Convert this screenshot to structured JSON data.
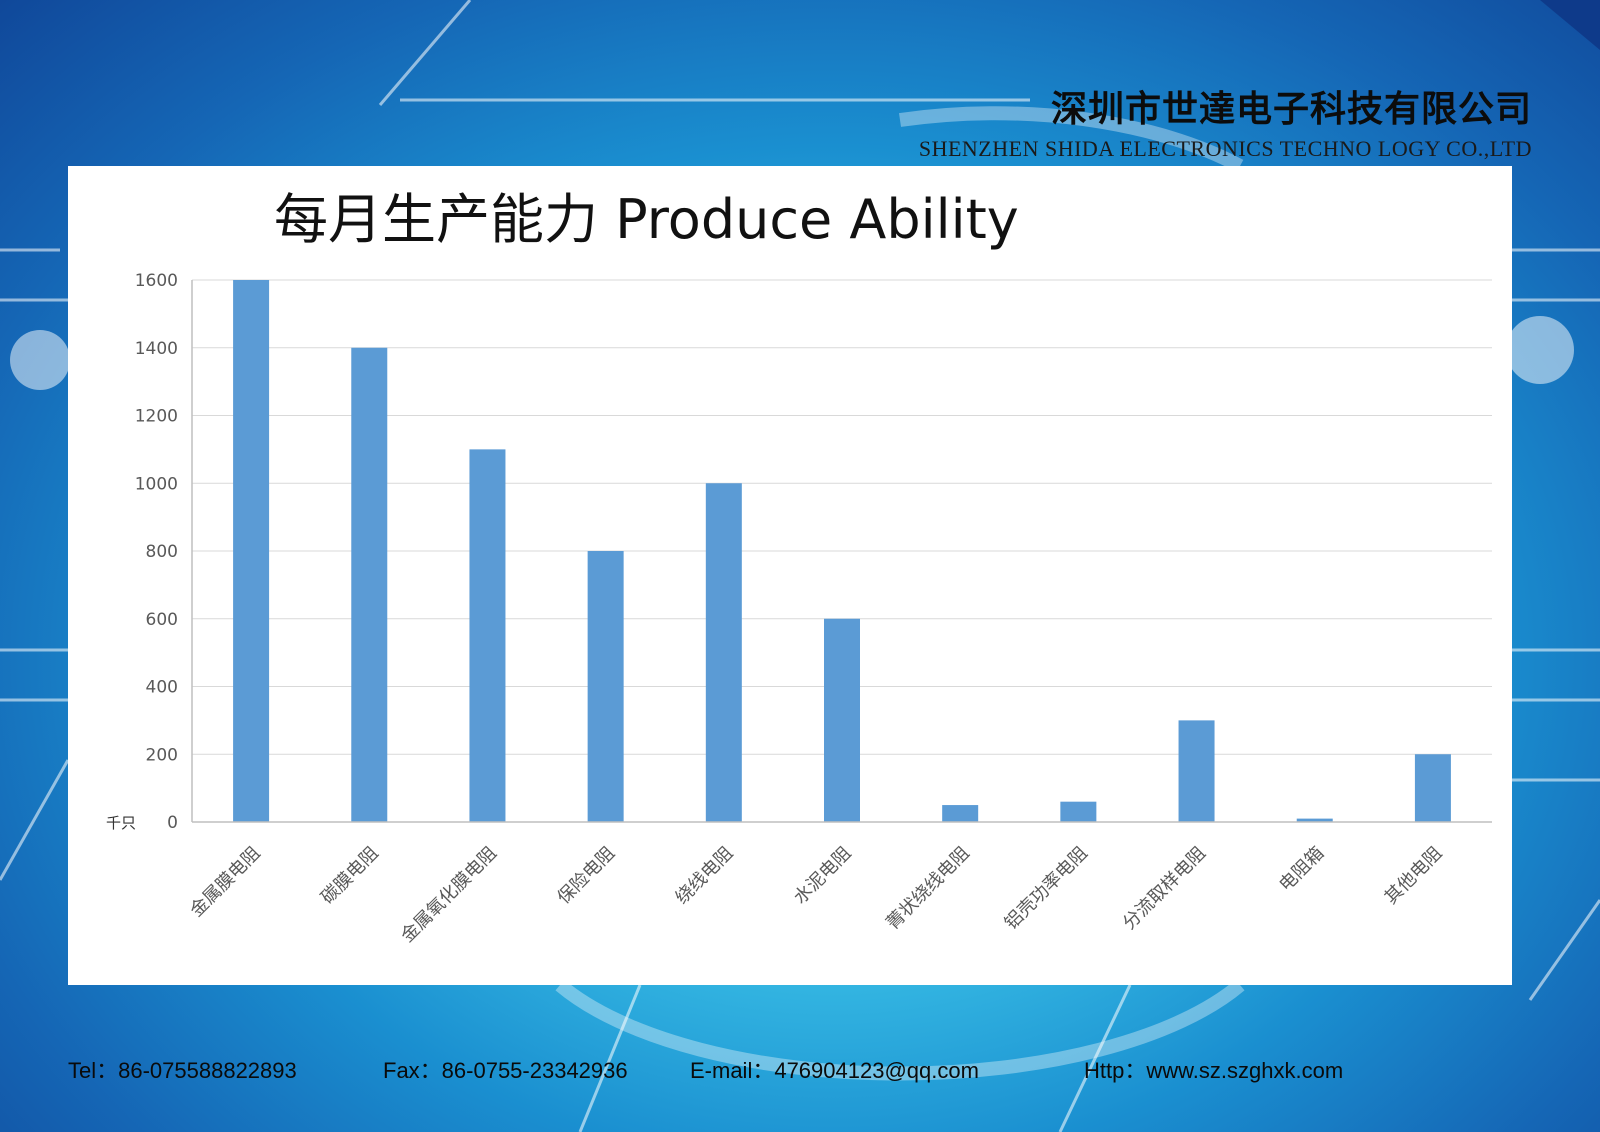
{
  "company": {
    "name_cn": "深圳市世達电子科技有限公司",
    "name_en": "SHENZHEN SHIDA ELECTRONICS TECHNO LOGY CO.,LTD"
  },
  "chart_data": {
    "type": "bar",
    "title": "每月生产能力 Produce Ability",
    "ylabel": "千只",
    "categories": [
      "金属膜电阻",
      "碳膜电阻",
      "金属氧化膜电阻",
      "保险电阻",
      "绕线电阻",
      "水泥电阻",
      "菁状绕线电阻",
      "铝壳功率电阻",
      "分流取样电阻",
      "电阻箱",
      "其他电阻"
    ],
    "values": [
      1600,
      1400,
      1100,
      800,
      1000,
      600,
      50,
      60,
      300,
      10,
      200
    ],
    "ylim": [
      0,
      1600
    ],
    "yticks": [
      "0",
      "200",
      "400",
      "600",
      "800",
      "1000",
      "1200",
      "1400",
      "1600"
    ],
    "grid": true,
    "bar_color": "#5b9bd5"
  },
  "footer": {
    "tel": "Tel：86-075588822893",
    "fax": "Fax：86-0755-23342936",
    "email": "E-mail：476904123@qq.com",
    "http": "Http：www.sz.szghxk.com"
  }
}
